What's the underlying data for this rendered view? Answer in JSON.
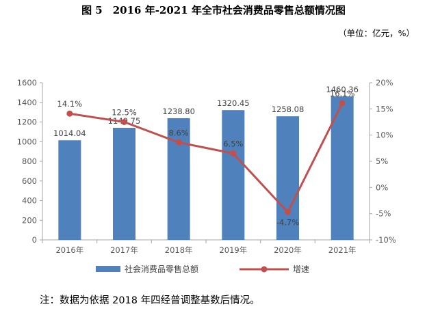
{
  "title": "图 5　2016 年-2021 年全市社会消费品零售总额情况图",
  "unit": "（单位：亿元，%）",
  "note": "注：数据为依据 2018 年四经普调整基数后情况。",
  "chart_data": {
    "type": "bar",
    "categories": [
      "2016年",
      "2017年",
      "2018年",
      "2019年",
      "2020年",
      "2021年"
    ],
    "series": [
      {
        "name": "社会消费品零售总额",
        "type": "bar",
        "axis": "left",
        "values": [
          1014.04,
          1140.75,
          1238.8,
          1320.45,
          1258.08,
          1460.36
        ],
        "labels": [
          "1014.04",
          "1140.75",
          "1238.80",
          "1320.45",
          "1258.08",
          "1460.36"
        ],
        "color": "#4f81bd"
      },
      {
        "name": "增速",
        "type": "line",
        "axis": "right",
        "values": [
          14.1,
          12.5,
          8.6,
          6.5,
          -4.7,
          16.1
        ],
        "labels": [
          "14.1%",
          "12.5%",
          "8.6%",
          "6.5%",
          "-4.7%",
          "16.1%"
        ],
        "color": "#c0504d"
      }
    ],
    "left_axis": {
      "min": 0,
      "max": 1600,
      "step": 200,
      "ticks": [
        "0",
        "200",
        "400",
        "600",
        "800",
        "1000",
        "1200",
        "1400",
        "1600"
      ]
    },
    "right_axis": {
      "min": -10,
      "max": 20,
      "step": 5,
      "ticks": [
        "-10%",
        "-5%",
        "0%",
        "5%",
        "10%",
        "15%",
        "20%"
      ]
    },
    "grid": false,
    "legend_position": "bottom"
  }
}
